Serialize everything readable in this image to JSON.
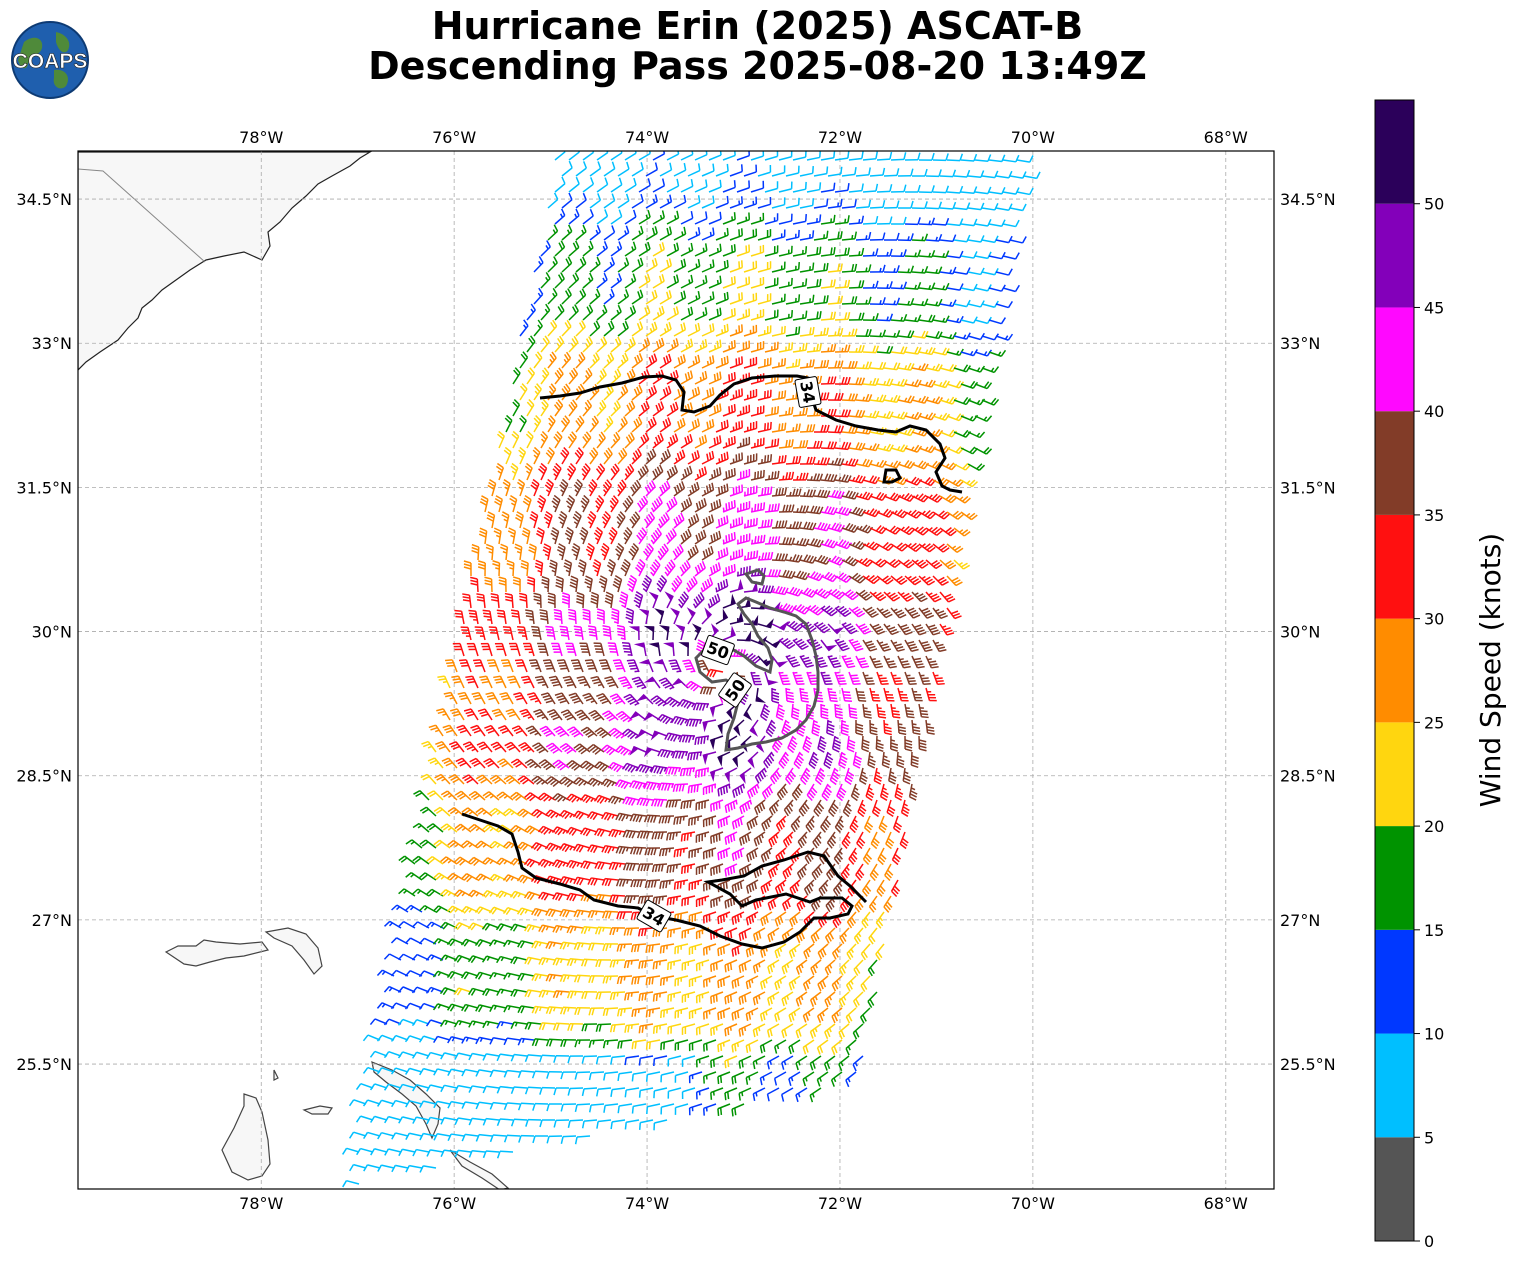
{
  "title": {
    "line1": "Hurricane Erin (2025) ASCAT-B",
    "line2": "Descending Pass 2025-08-20 13:49Z"
  },
  "logo": {
    "text": "COAPS"
  },
  "map": {
    "lon_ticks": [
      "78°W",
      "76°W",
      "74°W",
      "72°W",
      "70°W",
      "68°W"
    ],
    "lat_ticks": [
      "34.5°N",
      "33°N",
      "31.5°N",
      "30°N",
      "28.5°N",
      "27°N",
      "25.5°N"
    ],
    "lon_range": [
      -79.9,
      -67.5
    ],
    "lat_range": [
      24.2,
      35.0
    ],
    "gridlines": true
  },
  "contours": [
    {
      "label": "34",
      "level_kt": 34
    },
    {
      "label": "34",
      "level_kt": 34
    },
    {
      "label": "50",
      "level_kt": 50
    },
    {
      "label": "50",
      "level_kt": 50
    }
  ],
  "colorbar": {
    "label": "Wind Speed (knots)",
    "ticks": [
      "0",
      "5",
      "10",
      "15",
      "20",
      "25",
      "30",
      "35",
      "40",
      "45",
      "50"
    ],
    "bins": [
      {
        "from": 0,
        "to": 5,
        "color": "#555555"
      },
      {
        "from": 5,
        "to": 10,
        "color": "#00bfff"
      },
      {
        "from": 10,
        "to": 15,
        "color": "#0038ff"
      },
      {
        "from": 15,
        "to": 20,
        "color": "#009300"
      },
      {
        "from": 20,
        "to": 25,
        "color": "#ffd60f"
      },
      {
        "from": 25,
        "to": 30,
        "color": "#ff8c00"
      },
      {
        "from": 30,
        "to": 35,
        "color": "#ff1010"
      },
      {
        "from": 35,
        "to": 40,
        "color": "#823c28"
      },
      {
        "from": 40,
        "to": 45,
        "color": "#ff08ff"
      },
      {
        "from": 45,
        "to": 50,
        "color": "#8300ba"
      },
      {
        "from": 50,
        "to": 55,
        "color": "#2b005a"
      }
    ]
  },
  "storm": {
    "center_lon": -73.2,
    "center_lat": 29.6
  }
}
